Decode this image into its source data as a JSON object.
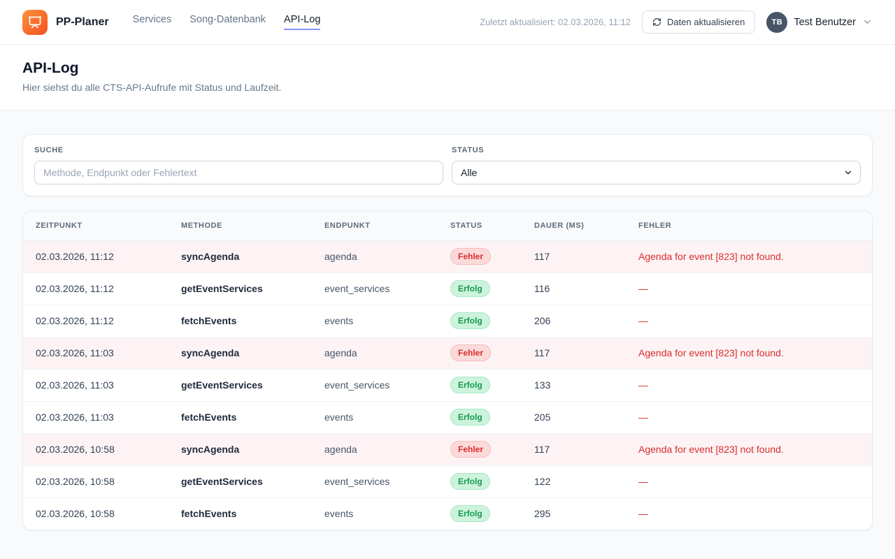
{
  "header": {
    "brand": "PP-Planer",
    "nav": [
      {
        "label": "Services",
        "active": false
      },
      {
        "label": "Song-Datenbank",
        "active": false
      },
      {
        "label": "API-Log",
        "active": true
      }
    ],
    "last_updated": "Zuletzt aktualisiert: 02.03.2026, 11:12",
    "refresh_button_label": "Daten aktualisieren",
    "user": {
      "initials": "TB",
      "name": "Test Benutzer"
    }
  },
  "page": {
    "title": "API-Log",
    "subtitle": "Hier siehst du alle CTS-API-Aufrufe mit Status und Laufzeit."
  },
  "filters": {
    "search_label": "SUCHE",
    "search_placeholder": "Methode, Endpunkt oder Fehlertext",
    "search_value": "",
    "status_label": "STATUS",
    "status_selected": "Alle"
  },
  "table": {
    "columns": [
      "ZEITPUNKT",
      "METHODE",
      "ENDPUNKT",
      "STATUS",
      "DAUER (MS)",
      "FEHLER"
    ],
    "error_status_label": "Fehler",
    "success_status_label": "Erfolg",
    "rows": [
      {
        "timestamp": "02.03.2026, 11:12",
        "method": "syncAgenda",
        "endpoint": "agenda",
        "status": "Fehler",
        "duration": "117",
        "error": "Agenda for event [823] not found."
      },
      {
        "timestamp": "02.03.2026, 11:12",
        "method": "getEventServices",
        "endpoint": "event_services",
        "status": "Erfolg",
        "duration": "116",
        "error": "—"
      },
      {
        "timestamp": "02.03.2026, 11:12",
        "method": "fetchEvents",
        "endpoint": "events",
        "status": "Erfolg",
        "duration": "206",
        "error": "—"
      },
      {
        "timestamp": "02.03.2026, 11:03",
        "method": "syncAgenda",
        "endpoint": "agenda",
        "status": "Fehler",
        "duration": "117",
        "error": "Agenda for event [823] not found."
      },
      {
        "timestamp": "02.03.2026, 11:03",
        "method": "getEventServices",
        "endpoint": "event_services",
        "status": "Erfolg",
        "duration": "133",
        "error": "—"
      },
      {
        "timestamp": "02.03.2026, 11:03",
        "method": "fetchEvents",
        "endpoint": "events",
        "status": "Erfolg",
        "duration": "205",
        "error": "—"
      },
      {
        "timestamp": "02.03.2026, 10:58",
        "method": "syncAgenda",
        "endpoint": "agenda",
        "status": "Fehler",
        "duration": "117",
        "error": "Agenda for event [823] not found."
      },
      {
        "timestamp": "02.03.2026, 10:58",
        "method": "getEventServices",
        "endpoint": "event_services",
        "status": "Erfolg",
        "duration": "122",
        "error": "—"
      },
      {
        "timestamp": "02.03.2026, 10:58",
        "method": "fetchEvents",
        "endpoint": "events",
        "status": "Erfolg",
        "duration": "295",
        "error": "—"
      }
    ]
  },
  "colors": {
    "brand_orange_start": "#fb923c",
    "brand_orange_end": "#f4511e",
    "nav_active_underline": "#8a93f8",
    "error_text": "#d92d2d",
    "error_badge_bg": "#fcdada",
    "error_row_bg": "#fdf3f4",
    "success_badge_bg": "#cdf3dd",
    "success_text": "#169a4e",
    "avatar_bg": "#475569",
    "page_bg": "#f8fafc"
  }
}
